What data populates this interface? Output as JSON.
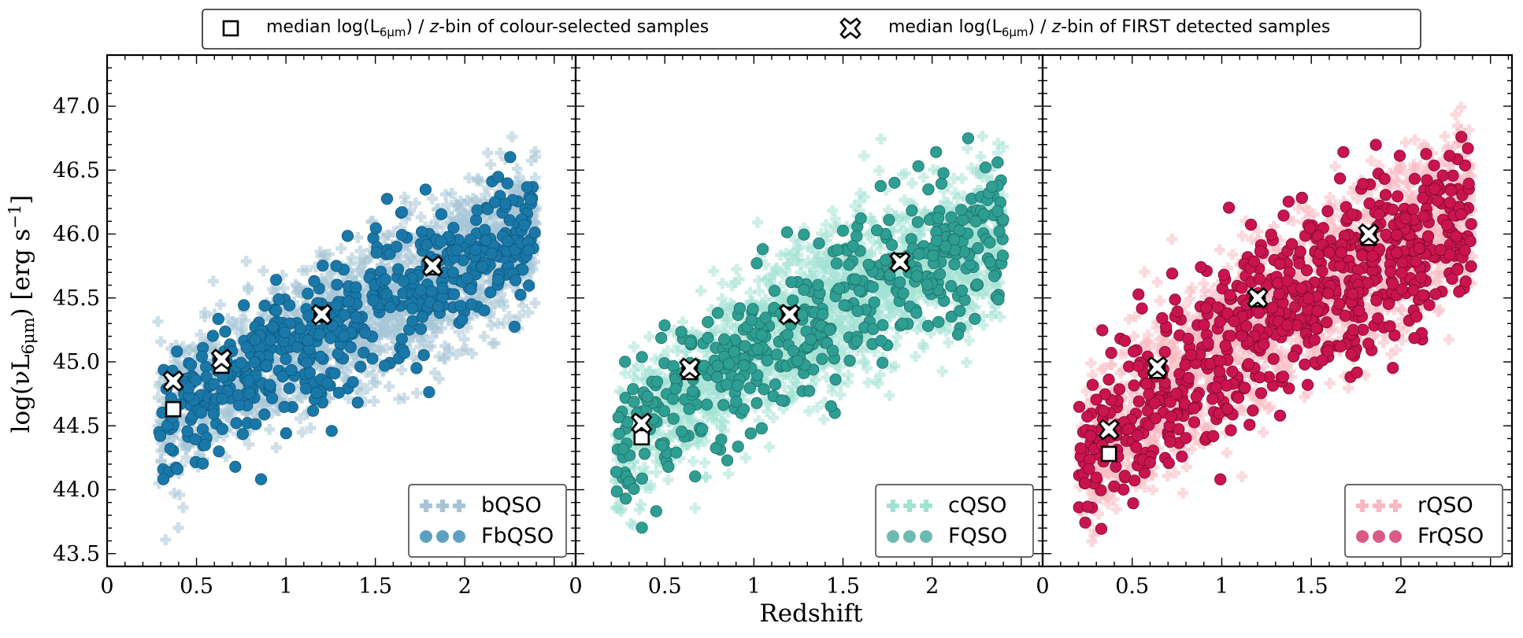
{
  "figure": {
    "top_legend": {
      "square_label": "median log(L",
      "square_label_sub": "6μm",
      "square_label_tail": ") / ",
      "square_label_z": "z",
      "square_label_end": "-bin of colour-selected samples",
      "cross_label": "median log(L",
      "cross_label_sub": "6μm",
      "cross_label_tail": ") / ",
      "cross_label_z": "z",
      "cross_label_end": "-bin of FIRST detected samples"
    },
    "ylabel_main": "log(νL",
    "ylabel_sub": "6μm",
    "ylabel_tail": ") [erg s",
    "ylabel_sup": "−1",
    "ylabel_end": "]",
    "xlabel": "Redshift"
  },
  "chart_data": [
    {
      "type": "scatter",
      "panel": "left",
      "xlim": [
        0,
        2.62
      ],
      "ylim": [
        43.4,
        47.4
      ],
      "x_ticks": [
        "0",
        "0.5",
        "1",
        "1.5",
        "2"
      ],
      "y_ticks": [
        "43.5",
        "44.0",
        "44.5",
        "45.0",
        "45.5",
        "46.0",
        "46.5",
        "47.0"
      ],
      "colours": {
        "parent": "#a6c4d6",
        "first": "#1a78a8",
        "first_edge": "#0d5a80"
      },
      "legend": [
        "bQSO",
        "FbQSO"
      ],
      "legend_position": "lower-right",
      "trend": {
        "x0": 0.28,
        "x1": 2.4,
        "y0": 44.55,
        "y1": 46.05,
        "spread_parent": 0.28,
        "spread_first": 0.26
      },
      "median_colour_selected": [
        {
          "x": 0.37,
          "y": 44.63
        },
        {
          "x": 0.64,
          "y": 44.97
        },
        {
          "x": 1.2,
          "y": 45.37
        },
        {
          "x": 1.82,
          "y": 45.74
        }
      ],
      "median_first": [
        {
          "x": 0.37,
          "y": 44.85
        },
        {
          "x": 0.64,
          "y": 45.02
        },
        {
          "x": 1.2,
          "y": 45.37
        },
        {
          "x": 1.82,
          "y": 45.75
        }
      ]
    },
    {
      "type": "scatter",
      "panel": "middle",
      "xlim": [
        0,
        2.62
      ],
      "ylim": [
        43.4,
        47.4
      ],
      "x_ticks": [
        "0",
        "0.5",
        "1",
        "1.5",
        "2"
      ],
      "y_ticks": [
        "43.5",
        "44.0",
        "44.5",
        "45.0",
        "45.5",
        "46.0",
        "46.5",
        "47.0"
      ],
      "colours": {
        "parent": "#a3e2d4",
        "first": "#2e9e92",
        "first_edge": "#1c7068"
      },
      "legend": [
        "cQSO",
        "FQSO"
      ],
      "legend_position": "lower-right",
      "trend": {
        "x0": 0.22,
        "x1": 2.4,
        "y0": 44.2,
        "y1": 46.05,
        "spread_parent": 0.3,
        "spread_first": 0.3
      },
      "median_colour_selected": [
        {
          "x": 0.37,
          "y": 44.41
        },
        {
          "x": 0.64,
          "y": 44.92
        },
        {
          "x": 1.2,
          "y": 45.37
        },
        {
          "x": 1.82,
          "y": 45.79
        }
      ],
      "median_first": [
        {
          "x": 0.37,
          "y": 44.52
        },
        {
          "x": 0.64,
          "y": 44.95
        },
        {
          "x": 1.2,
          "y": 45.37
        },
        {
          "x": 1.82,
          "y": 45.78
        }
      ]
    },
    {
      "type": "scatter",
      "panel": "right",
      "xlim": [
        0,
        2.62
      ],
      "ylim": [
        43.4,
        47.4
      ],
      "x_ticks": [
        "0",
        "0.5",
        "1",
        "1.5",
        "2"
      ],
      "y_ticks": [
        "43.5",
        "44.0",
        "44.5",
        "45.0",
        "45.5",
        "46.0",
        "46.5",
        "47.0"
      ],
      "colours": {
        "parent": "#f9b9c1",
        "first": "#c9144f",
        "first_edge": "#7e0a30"
      },
      "legend": [
        "rQSO",
        "FrQSO"
      ],
      "legend_position": "lower-right",
      "trend": {
        "x0": 0.2,
        "x1": 2.4,
        "y0": 44.05,
        "y1": 46.2,
        "spread_parent": 0.32,
        "spread_first": 0.34
      },
      "median_colour_selected": [
        {
          "x": 0.37,
          "y": 44.28
        },
        {
          "x": 0.64,
          "y": 44.93
        },
        {
          "x": 1.2,
          "y": 45.49
        },
        {
          "x": 1.82,
          "y": 45.97
        }
      ],
      "median_first": [
        {
          "x": 0.37,
          "y": 44.47
        },
        {
          "x": 0.64,
          "y": 44.96
        },
        {
          "x": 1.2,
          "y": 45.5
        },
        {
          "x": 1.82,
          "y": 46.0
        }
      ]
    }
  ]
}
